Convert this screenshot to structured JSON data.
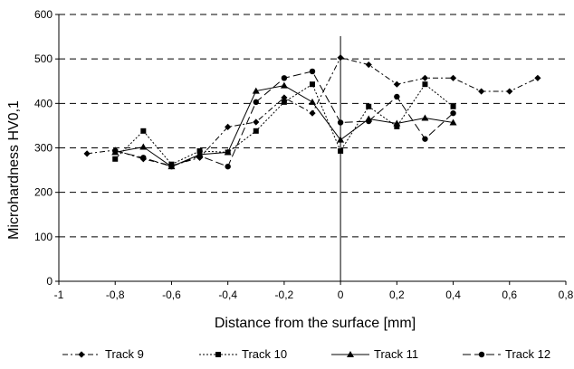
{
  "chart_data": {
    "type": "line",
    "title": "",
    "xlabel": "Distance from the surface [mm]",
    "ylabel": "Microhardness HV0,1",
    "xlim": [
      -1,
      0.8
    ],
    "ylim": [
      0,
      600
    ],
    "x_ticks": [
      {
        "value": -1,
        "label": "-1"
      },
      {
        "value": -0.8,
        "label": "-0,8"
      },
      {
        "value": -0.6,
        "label": "-0,6"
      },
      {
        "value": -0.4,
        "label": "-0,4"
      },
      {
        "value": -0.2,
        "label": "-0,2"
      },
      {
        "value": 0,
        "label": "0"
      },
      {
        "value": 0.2,
        "label": "0,2"
      },
      {
        "value": 0.4,
        "label": "0,4"
      },
      {
        "value": 0.6,
        "label": "0,6"
      },
      {
        "value": 0.8,
        "label": "0,8"
      }
    ],
    "y_ticks": [
      {
        "value": 0,
        "label": "0"
      },
      {
        "value": 100,
        "label": "100"
      },
      {
        "value": 200,
        "label": "200"
      },
      {
        "value": 300,
        "label": "300"
      },
      {
        "value": 400,
        "label": "400"
      },
      {
        "value": 500,
        "label": "500"
      },
      {
        "value": 600,
        "label": "600"
      }
    ],
    "grid": "horizontal dashed",
    "legend_position": "bottom",
    "vertical_line_at_x": 0,
    "series": [
      {
        "name": "Track 9",
        "marker": "diamond",
        "dash": "6,3,2,3",
        "points": [
          [
            -0.9,
            287
          ],
          [
            -0.8,
            295
          ],
          [
            -0.7,
            275
          ],
          [
            -0.6,
            260
          ],
          [
            -0.5,
            278
          ],
          [
            -0.4,
            347
          ],
          [
            -0.3,
            358
          ],
          [
            -0.2,
            413
          ],
          [
            -0.1,
            378
          ],
          [
            0,
            503
          ],
          [
            0.1,
            487
          ],
          [
            0.2,
            443
          ],
          [
            0.3,
            457
          ],
          [
            0.4,
            457
          ],
          [
            0.5,
            427
          ],
          [
            0.6,
            427
          ],
          [
            0.7,
            457
          ]
        ]
      },
      {
        "name": "Track 10",
        "marker": "square",
        "dash": "2,2",
        "points": [
          [
            -0.8,
            275
          ],
          [
            -0.7,
            338
          ],
          [
            -0.6,
            263
          ],
          [
            -0.5,
            293
          ],
          [
            -0.4,
            290
          ],
          [
            -0.3,
            338
          ],
          [
            -0.2,
            403
          ],
          [
            -0.1,
            443
          ],
          [
            0,
            293
          ],
          [
            0.1,
            393
          ],
          [
            0.2,
            348
          ],
          [
            0.3,
            443
          ],
          [
            0.4,
            393
          ]
        ]
      },
      {
        "name": "Track 11",
        "marker": "triangle",
        "dash": "",
        "points": [
          [
            -0.8,
            290
          ],
          [
            -0.7,
            302
          ],
          [
            -0.6,
            258
          ],
          [
            -0.5,
            285
          ],
          [
            -0.4,
            290
          ],
          [
            -0.3,
            428
          ],
          [
            -0.2,
            440
          ],
          [
            -0.1,
            403
          ],
          [
            0,
            318
          ],
          [
            0.1,
            365
          ],
          [
            0.2,
            355
          ],
          [
            0.3,
            367
          ],
          [
            0.4,
            357
          ]
        ]
      },
      {
        "name": "Track 12",
        "marker": "circle",
        "dash": "9,4",
        "points": [
          [
            -0.8,
            293
          ],
          [
            -0.7,
            278
          ],
          [
            -0.6,
            258
          ],
          [
            -0.5,
            282
          ],
          [
            -0.4,
            258
          ],
          [
            -0.3,
            403
          ],
          [
            -0.2,
            457
          ],
          [
            -0.1,
            472
          ],
          [
            0,
            357
          ],
          [
            0.1,
            360
          ],
          [
            0.2,
            415
          ],
          [
            0.3,
            320
          ],
          [
            0.4,
            378
          ]
        ]
      }
    ]
  }
}
